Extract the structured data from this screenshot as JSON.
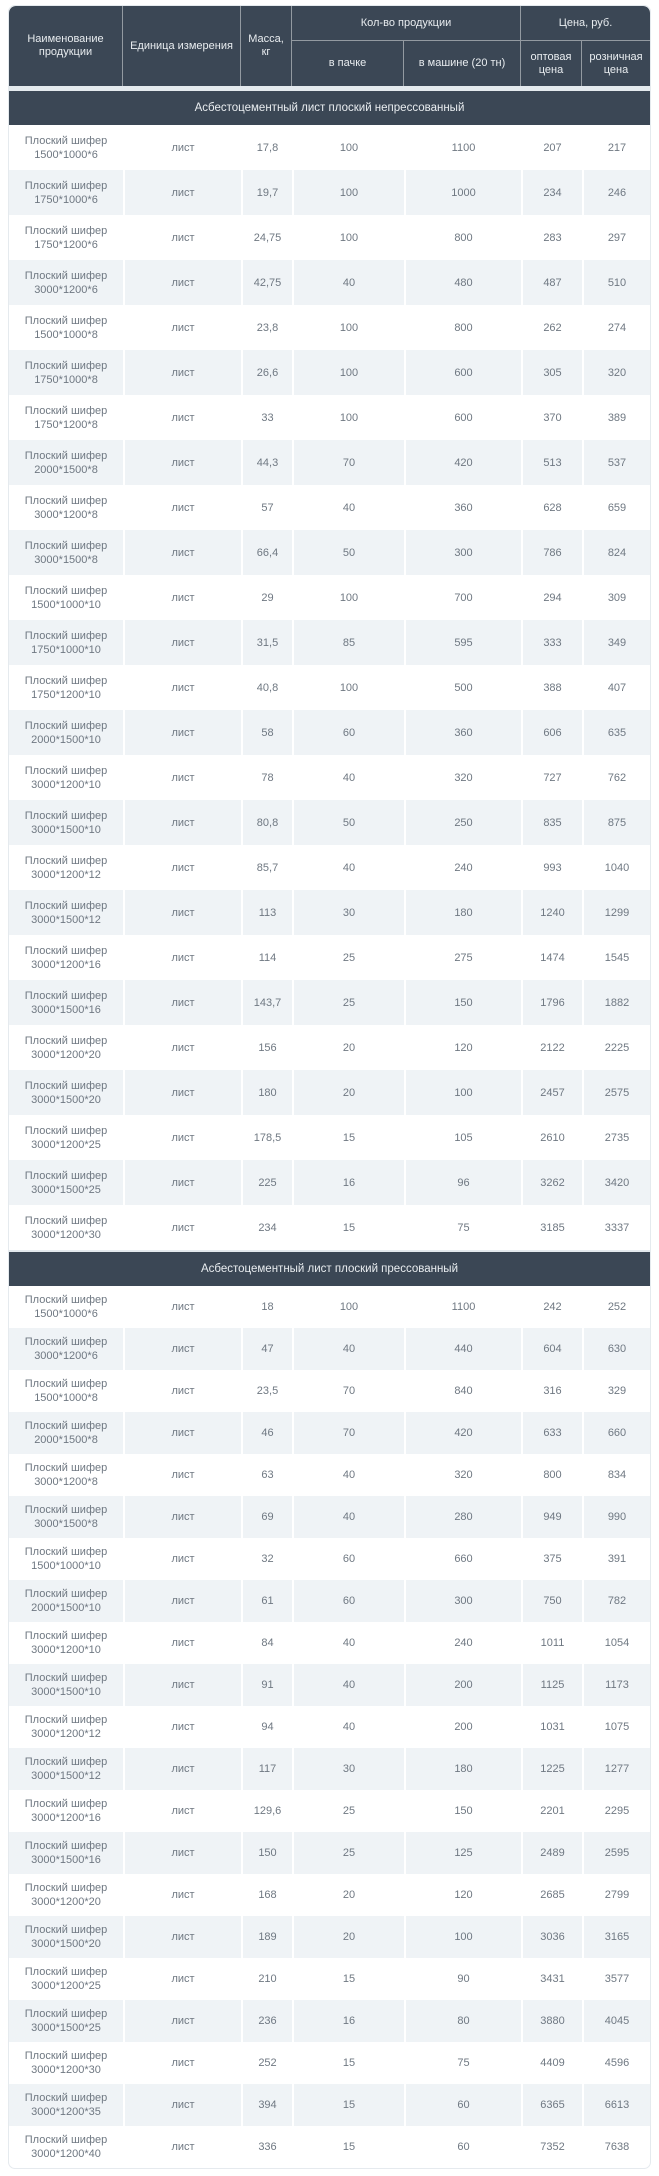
{
  "header": {
    "col_name": "Наименование продукции",
    "col_unit": "Единица измерения",
    "col_mass": "Масса, кг",
    "group_qty": "Кол-во продукции",
    "col_pack": "в пачке",
    "col_truck": "в машине (20 тн)",
    "group_price": "Цена, руб.",
    "col_wholesale": "оптовая цена",
    "col_retail": "розничная цена"
  },
  "sections": [
    {
      "title": "Асбестоцементный лист плоский непрессованный",
      "rows": [
        [
          "Плоский шифер",
          "1500*1000*6",
          "лист",
          "17,8",
          "100",
          "1100",
          "207",
          "217"
        ],
        [
          "Плоский шифер",
          "1750*1000*6",
          "лист",
          "19,7",
          "100",
          "1000",
          "234",
          "246"
        ],
        [
          "Плоский шифер",
          "1750*1200*6",
          "лист",
          "24,75",
          "100",
          "800",
          "283",
          "297"
        ],
        [
          "Плоский шифер",
          "3000*1200*6",
          "лист",
          "42,75",
          "40",
          "480",
          "487",
          "510"
        ],
        [
          "Плоский шифер",
          "1500*1000*8",
          "лист",
          "23,8",
          "100",
          "800",
          "262",
          "274"
        ],
        [
          "Плоский шифер",
          "1750*1000*8",
          "лист",
          "26,6",
          "100",
          "600",
          "305",
          "320"
        ],
        [
          "Плоский шифер",
          "1750*1200*8",
          "лист",
          "33",
          "100",
          "600",
          "370",
          "389"
        ],
        [
          "Плоский шифер",
          "2000*1500*8",
          "лист",
          "44,3",
          "70",
          "420",
          "513",
          "537"
        ],
        [
          "Плоский шифер",
          "3000*1200*8",
          "лист",
          "57",
          "40",
          "360",
          "628",
          "659"
        ],
        [
          "Плоский шифер",
          "3000*1500*8",
          "лист",
          "66,4",
          "50",
          "300",
          "786",
          "824"
        ],
        [
          "Плоский шифер",
          "1500*1000*10",
          "лист",
          "29",
          "100",
          "700",
          "294",
          "309"
        ],
        [
          "Плоский шифер",
          "1750*1000*10",
          "лист",
          "31,5",
          "85",
          "595",
          "333",
          "349"
        ],
        [
          "Плоский шифер",
          "1750*1200*10",
          "лист",
          "40,8",
          "100",
          "500",
          "388",
          "407"
        ],
        [
          "Плоский шифер",
          "2000*1500*10",
          "лист",
          "58",
          "60",
          "360",
          "606",
          "635"
        ],
        [
          "Плоский шифер",
          "3000*1200*10",
          "лист",
          "78",
          "40",
          "320",
          "727",
          "762"
        ],
        [
          "Плоский шифер",
          "3000*1500*10",
          "лист",
          "80,8",
          "50",
          "250",
          "835",
          "875"
        ],
        [
          "Плоский шифер",
          "3000*1200*12",
          "лист",
          "85,7",
          "40",
          "240",
          "993",
          "1040"
        ],
        [
          "Плоский шифер",
          "3000*1500*12",
          "лист",
          "113",
          "30",
          "180",
          "1240",
          "1299"
        ],
        [
          "Плоский шифер",
          "3000*1200*16",
          "лист",
          "114",
          "25",
          "275",
          "1474",
          "1545"
        ],
        [
          "Плоский шифер",
          "3000*1500*16",
          "лист",
          "143,7",
          "25",
          "150",
          "1796",
          "1882"
        ],
        [
          "Плоский шифер",
          "3000*1200*20",
          "лист",
          "156",
          "20",
          "120",
          "2122",
          "2225"
        ],
        [
          "Плоский шифер",
          "3000*1500*20",
          "лист",
          "180",
          "20",
          "100",
          "2457",
          "2575"
        ],
        [
          "Плоский шифер",
          "3000*1200*25",
          "лист",
          "178,5",
          "15",
          "105",
          "2610",
          "2735"
        ],
        [
          "Плоский шифер",
          "3000*1500*25",
          "лист",
          "225",
          "16",
          "96",
          "3262",
          "3420"
        ],
        [
          "Плоский шифер",
          "3000*1200*30",
          "лист",
          "234",
          "15",
          "75",
          "3185",
          "3337"
        ]
      ]
    },
    {
      "title": "Асбестоцементный лист плоский прессованный",
      "rows": [
        [
          "Плоский шифер",
          "1500*1000*6",
          "лист",
          "18",
          "100",
          "1100",
          "242",
          "252"
        ],
        [
          "Плоский шифер",
          "3000*1200*6",
          "лист",
          "47",
          "40",
          "440",
          "604",
          "630"
        ],
        [
          "Плоский шифер",
          "1500*1000*8",
          "лист",
          "23,5",
          "70",
          "840",
          "316",
          "329"
        ],
        [
          "Плоский шифер",
          "2000*1500*8",
          "лист",
          "46",
          "70",
          "420",
          "633",
          "660"
        ],
        [
          "Плоский шифер",
          "3000*1200*8",
          "лист",
          "63",
          "40",
          "320",
          "800",
          "834"
        ],
        [
          "Плоский шифер",
          "3000*1500*8",
          "лист",
          "69",
          "40",
          "280",
          "949",
          "990"
        ],
        [
          "Плоский шифер",
          "1500*1000*10",
          "лист",
          "32",
          "60",
          "660",
          "375",
          "391"
        ],
        [
          "Плоский шифер",
          "2000*1500*10",
          "лист",
          "61",
          "60",
          "300",
          "750",
          "782"
        ],
        [
          "Плоский шифер",
          "3000*1200*10",
          "лист",
          "84",
          "40",
          "240",
          "1011",
          "1054"
        ],
        [
          "Плоский шифер",
          "3000*1500*10",
          "лист",
          "91",
          "40",
          "200",
          "1125",
          "1173"
        ],
        [
          "Плоский шифер",
          "3000*1200*12",
          "лист",
          "94",
          "40",
          "200",
          "1031",
          "1075"
        ],
        [
          "Плоский шифер",
          "3000*1500*12",
          "лист",
          "117",
          "30",
          "180",
          "1225",
          "1277"
        ],
        [
          "Плоский шифер",
          "3000*1200*16",
          "лист",
          "129,6",
          "25",
          "150",
          "2201",
          "2295"
        ],
        [
          "Плоский шифер",
          "3000*1500*16",
          "лист",
          "150",
          "25",
          "125",
          "2489",
          "2595"
        ],
        [
          "Плоский шифер",
          "3000*1200*20",
          "лист",
          "168",
          "20",
          "120",
          "2685",
          "2799"
        ],
        [
          "Плоский шифер",
          "3000*1500*20",
          "лист",
          "189",
          "20",
          "100",
          "3036",
          "3165"
        ],
        [
          "Плоский шифер",
          "3000*1200*25",
          "лист",
          "210",
          "15",
          "90",
          "3431",
          "3577"
        ],
        [
          "Плоский шифер",
          "3000*1500*25",
          "лист",
          "236",
          "16",
          "80",
          "3880",
          "4045"
        ],
        [
          "Плоский шифер",
          "3000*1200*30",
          "лист",
          "252",
          "15",
          "75",
          "4409",
          "4596"
        ],
        [
          "Плоский шифер",
          "3000*1200*35",
          "лист",
          "394",
          "15",
          "60",
          "6365",
          "6613"
        ],
        [
          "Плоский шифер",
          "3000*1200*40",
          "лист",
          "336",
          "15",
          "60",
          "7352",
          "7638"
        ]
      ]
    }
  ],
  "colors": {
    "header_bg": "#3b4755",
    "header_text": "#e9edf0",
    "stripe": "#eff3f6",
    "body_text": "#6f7882"
  }
}
